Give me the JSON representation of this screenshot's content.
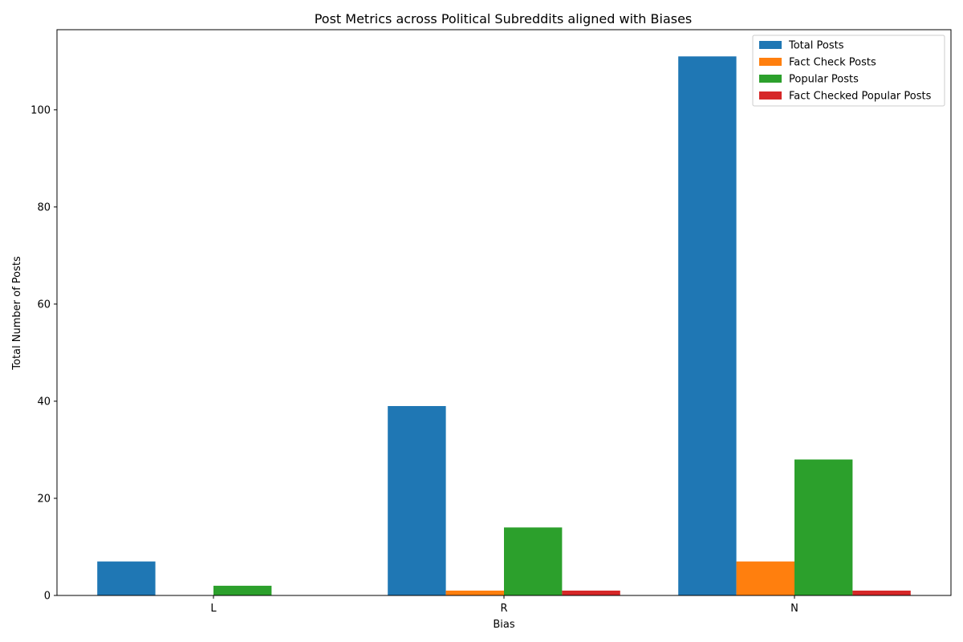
{
  "chart_data": {
    "type": "bar",
    "title": "Post Metrics across Political Subreddits aligned with Biases",
    "xlabel": "Bias",
    "ylabel": "Total Number of Posts",
    "categories": [
      "L",
      "R",
      "N"
    ],
    "ylim": [
      0,
      116.5
    ],
    "yticks": [
      0,
      20,
      40,
      60,
      80,
      100
    ],
    "grid": false,
    "legend_position": "top-right",
    "series": [
      {
        "name": "Total Posts",
        "color": "#1f77b4",
        "values": [
          7,
          39,
          111
        ]
      },
      {
        "name": "Fact Check Posts",
        "color": "#ff7f0e",
        "values": [
          0,
          1,
          7
        ]
      },
      {
        "name": "Popular Posts",
        "color": "#2ca02c",
        "values": [
          2,
          14,
          28
        ]
      },
      {
        "name": "Fact Checked Popular Posts",
        "color": "#d62728",
        "values": [
          0,
          1,
          1
        ]
      }
    ]
  }
}
